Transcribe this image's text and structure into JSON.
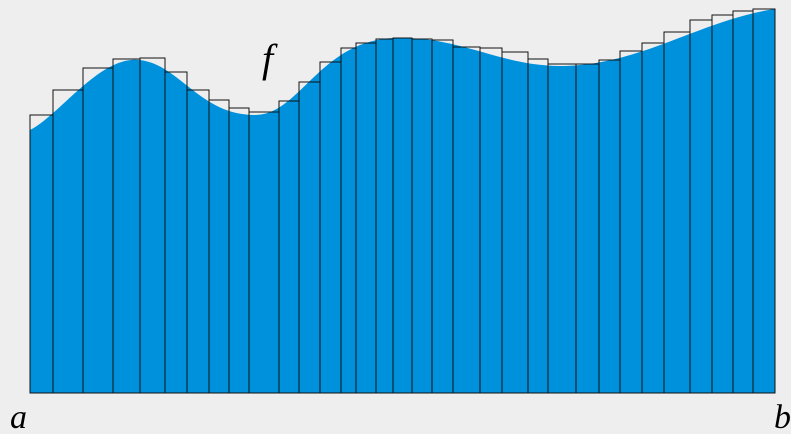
{
  "labels": {
    "function": "f",
    "left": "a",
    "right": "b"
  }
}
